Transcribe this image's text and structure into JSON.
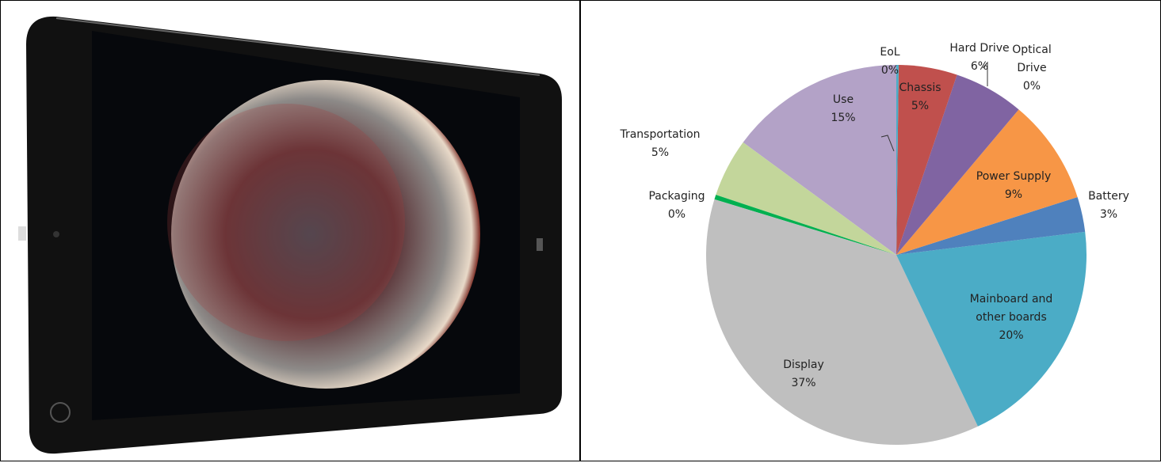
{
  "chart_data": {
    "type": "pie",
    "categories": [
      "EoL",
      "Chassis",
      "Hard Drive",
      "Optical Drive",
      "Power Supply",
      "Battery",
      "Mainboard and other boards",
      "Display",
      "Packaging",
      "Transportation",
      "Use"
    ],
    "values": [
      0.2,
      5,
      6,
      0,
      9,
      3,
      20,
      37,
      0.4,
      5,
      15
    ],
    "value_labels": [
      "0%",
      "5%",
      "6%",
      "0%",
      "9%",
      "3%",
      "20%",
      "37%",
      "0%",
      "5%",
      "15%"
    ],
    "colors": [
      "#4bacc6",
      "#c0504d",
      "#8064a2",
      "#9bbb59",
      "#f79646",
      "#4f81bd",
      "#4bacc6",
      "#bfbfbf",
      "#00b050",
      "#c3d69b",
      "#b3a2c7"
    ]
  }
}
